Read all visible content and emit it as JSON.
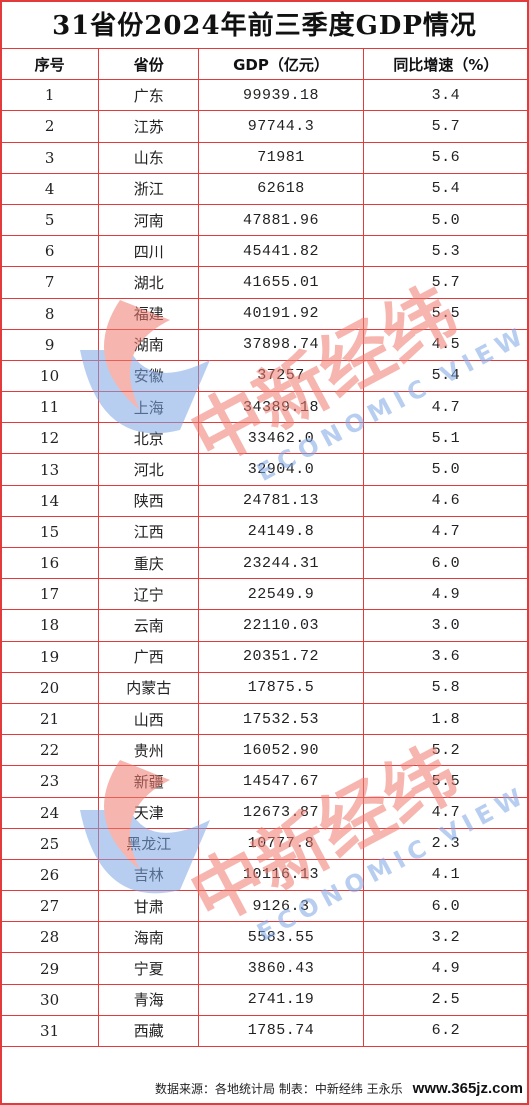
{
  "title": "31省份2024年前三季度GDP情况",
  "headers": [
    "序号",
    "省份",
    "GDP（亿元）",
    "同比增速（%）"
  ],
  "rows": [
    [
      "1",
      "广东",
      "99939.18",
      "3.4"
    ],
    [
      "2",
      "江苏",
      "97744.3",
      "5.7"
    ],
    [
      "3",
      "山东",
      "71981",
      "5.6"
    ],
    [
      "4",
      "浙江",
      "62618",
      "5.4"
    ],
    [
      "5",
      "河南",
      "47881.96",
      "5.0"
    ],
    [
      "6",
      "四川",
      "45441.82",
      "5.3"
    ],
    [
      "7",
      "湖北",
      "41655.01",
      "5.7"
    ],
    [
      "8",
      "福建",
      "40191.92",
      "5.5"
    ],
    [
      "9",
      "湖南",
      "37898.74",
      "4.5"
    ],
    [
      "10",
      "安徽",
      "37257",
      "5.4"
    ],
    [
      "11",
      "上海",
      "34389.18",
      "4.7"
    ],
    [
      "12",
      "北京",
      "33462.0",
      "5.1"
    ],
    [
      "13",
      "河北",
      "32904.0",
      "5.0"
    ],
    [
      "14",
      "陕西",
      "24781.13",
      "4.6"
    ],
    [
      "15",
      "江西",
      "24149.8",
      "4.7"
    ],
    [
      "16",
      "重庆",
      "23244.31",
      "6.0"
    ],
    [
      "17",
      "辽宁",
      "22549.9",
      "4.9"
    ],
    [
      "18",
      "云南",
      "22110.03",
      "3.0"
    ],
    [
      "19",
      "广西",
      "20351.72",
      "3.6"
    ],
    [
      "20",
      "内蒙古",
      "17875.5",
      "5.8"
    ],
    [
      "21",
      "山西",
      "17532.53",
      "1.8"
    ],
    [
      "22",
      "贵州",
      "16052.90",
      "5.2"
    ],
    [
      "23",
      "新疆",
      "14547.67",
      "5.5"
    ],
    [
      "24",
      "天津",
      "12673.87",
      "4.7"
    ],
    [
      "25",
      "黑龙江",
      "10777.8",
      "2.3"
    ],
    [
      "26",
      "吉林",
      "10116.13",
      "4.1"
    ],
    [
      "27",
      "甘肃",
      "9126.3",
      "6.0"
    ],
    [
      "28",
      "海南",
      "5583.55",
      "3.2"
    ],
    [
      "29",
      "宁夏",
      "3860.43",
      "4.9"
    ],
    [
      "30",
      "青海",
      "2741.19",
      "2.5"
    ],
    [
      "31",
      "西藏",
      "1785.74",
      "6.2"
    ]
  ],
  "footer": {
    "source": "数据来源：各地统计局  制表：中新经纬  王永乐",
    "site": "www.365jz.com"
  },
  "watermark": {
    "brand": "中新经纬",
    "sub": "ECONOMIC VIEW",
    "colors": {
      "red": "#f07a6e",
      "blue": "#7da7e6"
    }
  }
}
